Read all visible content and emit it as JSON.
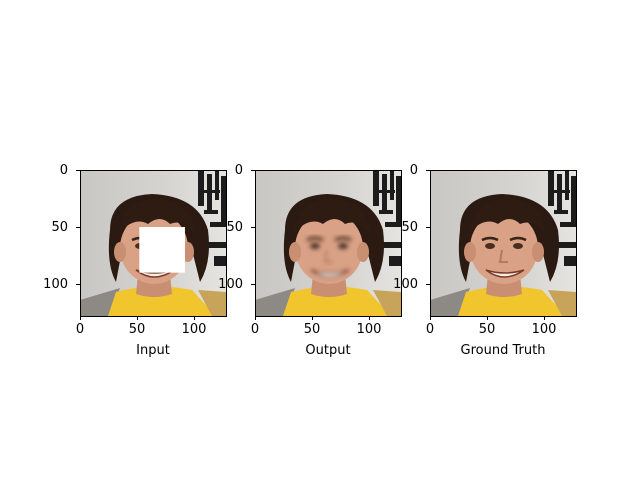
{
  "figure": {
    "panels": [
      {
        "id": "input",
        "xlabel": "Input",
        "occlusion": true,
        "blurred_face": false
      },
      {
        "id": "output",
        "xlabel": "Output",
        "occlusion": false,
        "blurred_face": true
      },
      {
        "id": "ground-truth",
        "xlabel": "Ground Truth",
        "occlusion": false,
        "blurred_face": false
      }
    ],
    "yticks": [
      "0",
      "50",
      "100"
    ],
    "xticks": [
      "0",
      "50",
      "100"
    ],
    "image_size": 128
  }
}
